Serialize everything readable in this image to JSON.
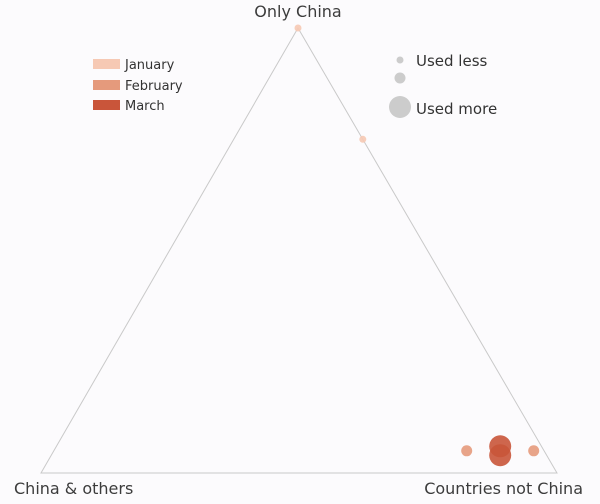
{
  "chart_data": {
    "type": "scatter",
    "subtype": "ternary",
    "title": "",
    "axes": {
      "top": "Only China",
      "left": "China & others",
      "right": "Countries not China"
    },
    "grid": false,
    "legend_position": "top-left",
    "series": [
      {
        "name": "January",
        "color": "#f6c9b4",
        "points": [
          {
            "only_china": 1.0,
            "china_and_others": 0.0,
            "countries_not_china": 0.0,
            "size": 1
          },
          {
            "only_china": 0.75,
            "china_and_others": 0.0,
            "countries_not_china": 0.25,
            "size": 1
          }
        ]
      },
      {
        "name": "February",
        "color": "#e59a7c",
        "points": [
          {
            "only_china": 0.05,
            "china_and_others": 0.15,
            "countries_not_china": 0.8,
            "size": 2
          },
          {
            "only_china": 0.05,
            "china_and_others": 0.02,
            "countries_not_china": 0.93,
            "size": 2
          }
        ]
      },
      {
        "name": "March",
        "color": "#c9553a",
        "points": [
          {
            "only_china": 0.06,
            "china_and_others": 0.08,
            "countries_not_china": 0.86,
            "size": 4
          },
          {
            "only_china": 0.04,
            "china_and_others": 0.09,
            "countries_not_china": 0.87,
            "size": 4
          }
        ]
      }
    ],
    "size_legend": {
      "color": "#cccccc",
      "entries": [
        {
          "label": "Used less",
          "size": 1
        },
        {
          "label": "",
          "size": 2
        },
        {
          "label": "Used more",
          "size": 4
        }
      ]
    }
  }
}
